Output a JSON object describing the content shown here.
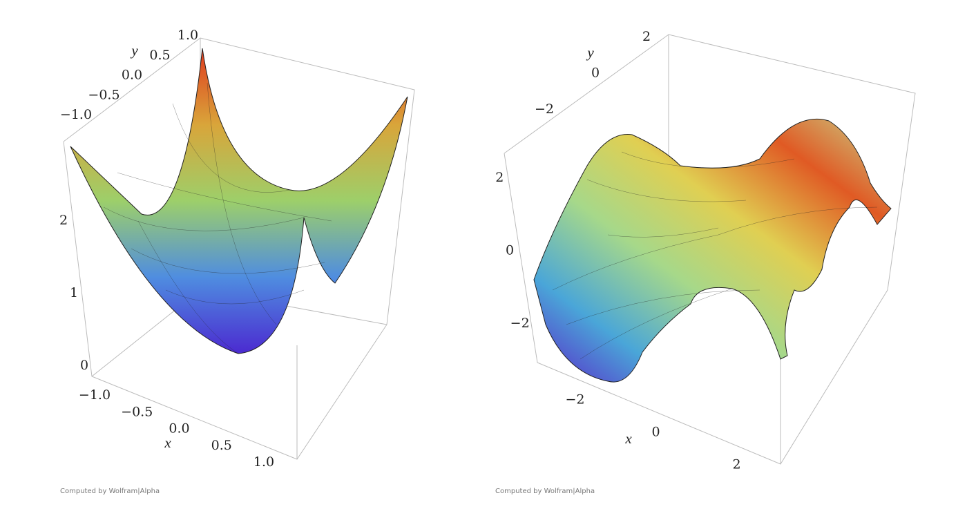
{
  "chart_data": [
    {
      "type": "surface3d",
      "x_label": "x",
      "y_label": "y",
      "xlim": [
        -1,
        1
      ],
      "ylim": [
        -1,
        1
      ],
      "zlim": [
        0,
        3
      ],
      "xticks": [
        {
          "value": -1,
          "label": "−1.0"
        },
        {
          "value": -0.5,
          "label": "−0.5"
        },
        {
          "value": 0,
          "label": "0.0"
        },
        0.5,
        {
          "value": 1,
          "label": "1.0"
        }
      ],
      "yticks": [
        {
          "value": -1,
          "label": "−1.0"
        },
        {
          "value": -0.5,
          "label": "−0.5"
        },
        {
          "value": 0,
          "label": "0.0"
        },
        0.5,
        {
          "value": 1,
          "label": "1.0"
        }
      ],
      "zticks": [
        0,
        1,
        2
      ],
      "credit": "Computed by Wolfram|Alpha"
    },
    {
      "type": "surface3d",
      "x_label": "x",
      "y_label": "y",
      "xlim": [
        -3,
        3
      ],
      "ylim": [
        -3,
        3
      ],
      "zlim": [
        -3,
        3
      ],
      "xticks": [
        {
          "value": -2,
          "label": "−2"
        },
        0,
        2
      ],
      "yticks": [
        {
          "value": -2,
          "label": "−2"
        },
        0,
        2
      ],
      "zticks": [
        {
          "value": -2,
          "label": "−2"
        },
        0,
        2
      ],
      "credit": "Computed by Wolfram|Alpha"
    }
  ]
}
